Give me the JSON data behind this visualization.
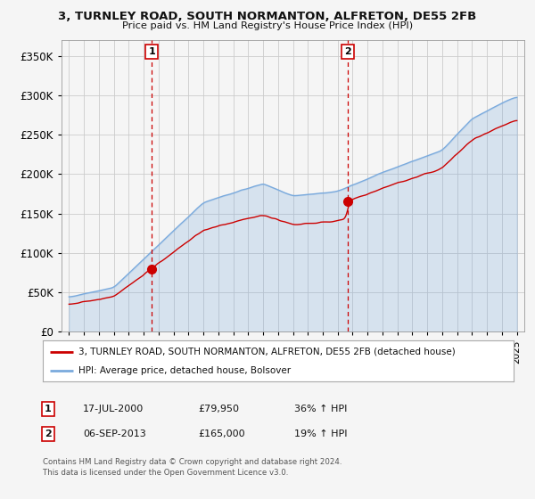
{
  "title": "3, TURNLEY ROAD, SOUTH NORMANTON, ALFRETON, DE55 2FB",
  "subtitle": "Price paid vs. HM Land Registry's House Price Index (HPI)",
  "ylabel_ticks": [
    "£0",
    "£50K",
    "£100K",
    "£150K",
    "£200K",
    "£250K",
    "£300K",
    "£350K"
  ],
  "ytick_values": [
    0,
    50000,
    100000,
    150000,
    200000,
    250000,
    300000,
    350000
  ],
  "ylim": [
    0,
    370000
  ],
  "xlim_start": 1994.5,
  "xlim_end": 2025.5,
  "background_color": "#f5f5f5",
  "plot_bg_color": "#f5f5f5",
  "grid_color": "#cccccc",
  "red_line_color": "#cc0000",
  "blue_line_color": "#7aaadd",
  "purchase1_date": 2000.54,
  "purchase1_price": 79950,
  "purchase1_label": "1",
  "purchase2_date": 2013.67,
  "purchase2_price": 165000,
  "purchase2_label": "2",
  "legend_line1": "3, TURNLEY ROAD, SOUTH NORMANTON, ALFRETON, DE55 2FB (detached house)",
  "legend_line2": "HPI: Average price, detached house, Bolsover",
  "table_row1": [
    "1",
    "17-JUL-2000",
    "£79,950",
    "36% ↑ HPI"
  ],
  "table_row2": [
    "2",
    "06-SEP-2013",
    "£165,000",
    "19% ↑ HPI"
  ],
  "footnote1": "Contains HM Land Registry data © Crown copyright and database right 2024.",
  "footnote2": "This data is licensed under the Open Government Licence v3.0.",
  "vline_color": "#cc0000",
  "label_box_edge": "#cc0000"
}
